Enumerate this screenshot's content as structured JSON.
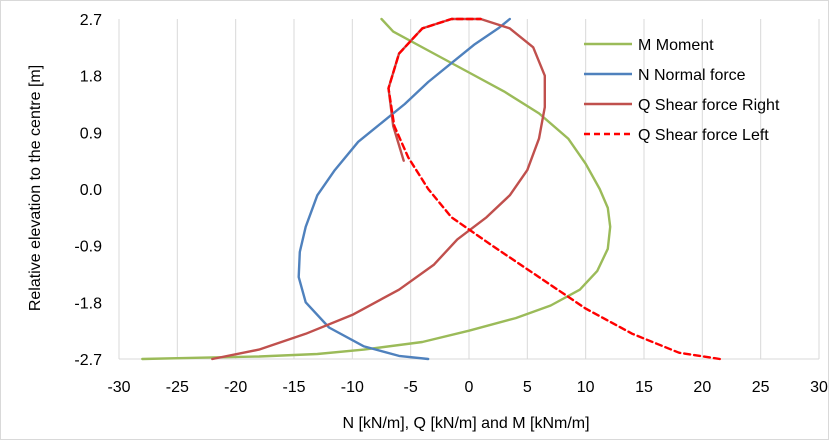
{
  "chart_data": {
    "type": "line",
    "title": "",
    "xlabel": "N [kN/m], Q [kN/m] and M [kNm/m]",
    "ylabel": "Relative elevation to the centre [m]",
    "xlim": [
      -30,
      30
    ],
    "ylim": [
      -2.7,
      2.7
    ],
    "x_ticks": [
      "-30",
      "-25",
      "-20",
      "-15",
      "-10",
      "-5",
      "0",
      "5",
      "10",
      "15",
      "20",
      "25",
      "30"
    ],
    "y_ticks": [
      "2.7",
      "1.8",
      "0.9",
      "0.0",
      "-0.9",
      "-1.8",
      "-2.7"
    ],
    "grid_vertical": true,
    "grid_horizontal": false,
    "legend_position": "top-right",
    "series": [
      {
        "name": "M Moment",
        "color": "#9bbb59",
        "dash": "solid",
        "points": [
          [
            -28,
            -2.7
          ],
          [
            -23,
            -2.68
          ],
          [
            -18,
            -2.66
          ],
          [
            -13,
            -2.62
          ],
          [
            -9,
            -2.55
          ],
          [
            -4,
            -2.43
          ],
          [
            0,
            -2.25
          ],
          [
            4,
            -2.05
          ],
          [
            7,
            -1.85
          ],
          [
            9.5,
            -1.6
          ],
          [
            11,
            -1.3
          ],
          [
            11.9,
            -0.95
          ],
          [
            12.1,
            -0.6
          ],
          [
            11.9,
            -0.3
          ],
          [
            11.2,
            0.0
          ],
          [
            10.0,
            0.4
          ],
          [
            8.5,
            0.8
          ],
          [
            6.0,
            1.2
          ],
          [
            3.0,
            1.55
          ],
          [
            0,
            1.85
          ],
          [
            -3.5,
            2.2
          ],
          [
            -6.5,
            2.5
          ],
          [
            -7.5,
            2.7
          ]
        ]
      },
      {
        "name": "N Normal force",
        "color": "#4f81bd",
        "dash": "solid",
        "points": [
          [
            -3.5,
            -2.7
          ],
          [
            -6,
            -2.65
          ],
          [
            -9,
            -2.5
          ],
          [
            -12,
            -2.2
          ],
          [
            -14,
            -1.8
          ],
          [
            -14.6,
            -1.4
          ],
          [
            -14.5,
            -1.0
          ],
          [
            -14,
            -0.6
          ],
          [
            -13,
            -0.1
          ],
          [
            -11.5,
            0.3
          ],
          [
            -9.5,
            0.75
          ],
          [
            -7.5,
            1.05
          ],
          [
            -5.5,
            1.35
          ],
          [
            -3.5,
            1.7
          ],
          [
            -1.5,
            2.0
          ],
          [
            0.5,
            2.3
          ],
          [
            2.5,
            2.55
          ],
          [
            3.5,
            2.7
          ]
        ]
      },
      {
        "name": "Q Shear force Right",
        "color": "#c0504d",
        "dash": "solid",
        "points": [
          [
            -22,
            -2.7
          ],
          [
            -18,
            -2.55
          ],
          [
            -14,
            -2.3
          ],
          [
            -10,
            -2.0
          ],
          [
            -6,
            -1.6
          ],
          [
            -3,
            -1.2
          ],
          [
            -1,
            -0.8
          ],
          [
            1.5,
            -0.45
          ],
          [
            3.5,
            -0.1
          ],
          [
            5.0,
            0.3
          ],
          [
            6.0,
            0.8
          ],
          [
            6.5,
            1.3
          ],
          [
            6.5,
            1.8
          ],
          [
            5.5,
            2.25
          ],
          [
            3.5,
            2.55
          ],
          [
            1.0,
            2.7
          ],
          [
            -1.5,
            2.7
          ],
          [
            -4,
            2.55
          ],
          [
            -6,
            2.15
          ],
          [
            -6.9,
            1.6
          ],
          [
            -6.5,
            1.0
          ],
          [
            -5.6,
            0.45
          ]
        ]
      },
      {
        "name": "Q Shear force Left",
        "color": "#ff0000",
        "dash": "dashed",
        "points": [
          [
            21.5,
            -2.7
          ],
          [
            18,
            -2.6
          ],
          [
            14,
            -2.3
          ],
          [
            10,
            -1.9
          ],
          [
            6,
            -1.4
          ],
          [
            2,
            -0.9
          ],
          [
            -1.5,
            -0.45
          ],
          [
            -3.5,
            0.0
          ],
          [
            -5.2,
            0.5
          ],
          [
            -6.4,
            1.0
          ],
          [
            -6.9,
            1.6
          ],
          [
            -6.0,
            2.15
          ],
          [
            -4.0,
            2.55
          ],
          [
            -1.5,
            2.7
          ],
          [
            1.0,
            2.7
          ]
        ]
      }
    ]
  }
}
